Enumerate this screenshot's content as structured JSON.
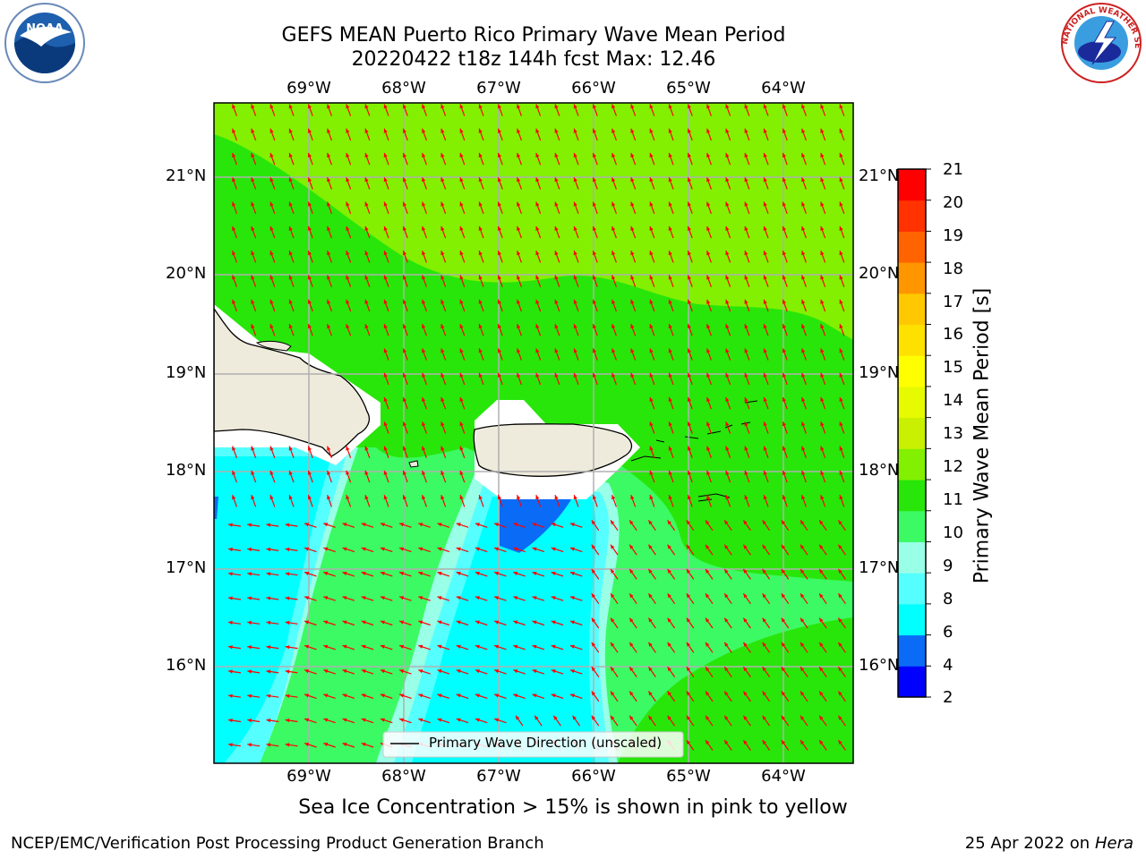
{
  "title_line1": "GEFS MEAN Puerto Rico Primary Wave Mean Period",
  "title_line2": "20220422 t18z 144h fcst   Max: 12.46",
  "logos": {
    "left": "NOAA",
    "right": "NATIONAL WEATHER SERVICE"
  },
  "map": {
    "lon_labels": [
      "69°W",
      "68°W",
      "67°W",
      "66°W",
      "65°W",
      "64°W"
    ],
    "lat_labels": [
      "21°N",
      "20°N",
      "19°N",
      "18°N",
      "17°N",
      "16°N"
    ],
    "legend": "Primary Wave Direction (unscaled)",
    "arrow_color": "#ff0000",
    "land_color": "#efebdc"
  },
  "colorbar": {
    "title": "Primary Wave Mean Period [s]",
    "ticks": [
      "21",
      "20",
      "19",
      "18",
      "17",
      "16",
      "15",
      "14",
      "13",
      "12",
      "11",
      "10",
      "9",
      "8",
      "6",
      "4",
      "2"
    ],
    "colors_bottom_to_top": [
      "#0000ff",
      "#0a6cf6",
      "#00ffff",
      "#55ffff",
      "#99ffe6",
      "#3cfa64",
      "#28e60a",
      "#82f000",
      "#c8f000",
      "#e6fa00",
      "#ffff00",
      "#ffe100",
      "#ffc800",
      "#ff9600",
      "#ff6400",
      "#ff3200",
      "#ff0000"
    ]
  },
  "note": "Sea Ice Concentration > 15% is shown in pink to yellow",
  "footer_left": "NCEP/EMC/Verification Post Processing Product Generation Branch",
  "footer_right_text": "25 Apr 2022 on",
  "footer_right_host": "Hera"
}
